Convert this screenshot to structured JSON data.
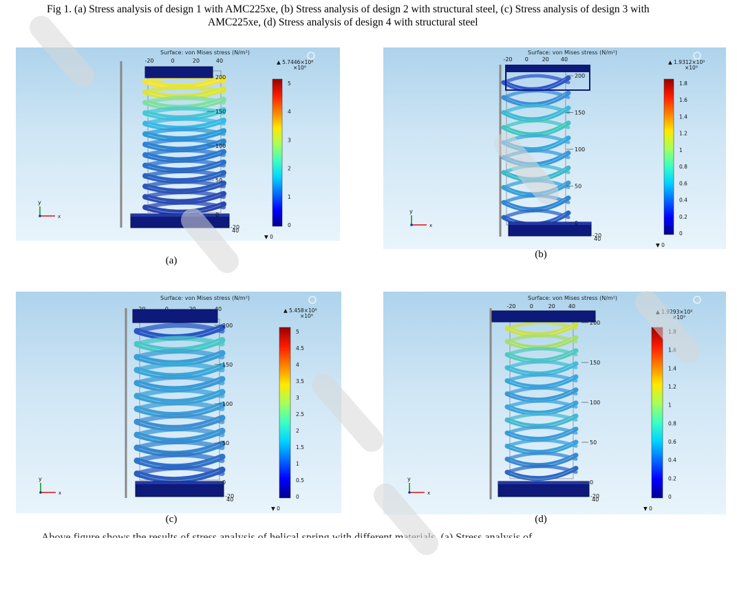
{
  "caption": {
    "line1": "Fig 1. (a) Stress analysis of design 1 with AMC225xe, (b) Stress analysis of design 2 with structural steel, (c) Stress analysis of design 3 with",
    "line2": "AMC225xe, (d) Stress analysis of design 4 with structural steel"
  },
  "body_text_partial": "Above figure shows the results of stress analysis of helical spring with different materials. (a) Stress analysis of",
  "panels": [
    {
      "id": "a",
      "label": "(a)",
      "title": "Surface: von Mises stress (N/m²)",
      "max_value": "▲ 5.7446×10⁸",
      "multiplier": "×10⁸",
      "min_value": "▼ 0",
      "colorbar_ticks": [
        "5",
        "4",
        "3",
        "2",
        "1",
        "0"
      ],
      "top_ticks": [
        "-20",
        "0",
        "20",
        "40"
      ],
      "height_ticks": [
        "200",
        "150",
        "100",
        "50",
        "0"
      ],
      "depth_ticks": [
        "-20",
        "40"
      ],
      "axis_y": "y",
      "axis_x": "x",
      "coils": 13,
      "stress_colors": [
        "#f2e431",
        "#d9e63a",
        "#7fe0a0",
        "#46c8d6",
        "#39b9e4",
        "#2f9ad8",
        "#2d84d4",
        "#2b78cf",
        "#2b70c9",
        "#2a63c2",
        "#2a58bb",
        "#2a4eb4",
        "#2a46ae"
      ]
    },
    {
      "id": "b",
      "label": "(b)",
      "title": "Surface: von Mises stress (N/m²)",
      "max_value": "▲ 1.9312×10⁹",
      "multiplier": "×10⁹",
      "min_value": "▼ 0",
      "colorbar_ticks": [
        "1.8",
        "1.6",
        "1.4",
        "1.2",
        "1",
        "0.8",
        "0.6",
        "0.4",
        "0.2",
        "0"
      ],
      "top_ticks": [
        "-20",
        "0",
        "20",
        "40"
      ],
      "height_ticks": [
        "200",
        "150",
        "100",
        "50",
        "0"
      ],
      "depth_ticks": [
        "-20",
        "40"
      ],
      "axis_y": "y",
      "axis_x": "x",
      "coils": 10,
      "stress_colors": [
        "#2f55c9",
        "#3b8fd8",
        "#3dbad4",
        "#43c6c0",
        "#3aa8dc",
        "#3a9ad8",
        "#3fb8cc",
        "#3aa0d8",
        "#2f88d2",
        "#2c63c4"
      ]
    },
    {
      "id": "c",
      "label": "(c)",
      "title": "Surface: von Mises stress (N/m²)",
      "max_value": "▲ 5.458×10⁸",
      "multiplier": "×10⁸",
      "min_value": "▼ 0",
      "colorbar_ticks": [
        "5",
        "4.5",
        "4",
        "3.5",
        "3",
        "2.5",
        "2",
        "1.5",
        "1",
        "0.5",
        "0"
      ],
      "top_ticks": [
        "-20",
        "0",
        "20",
        "40"
      ],
      "height_ticks": [
        "200",
        "150",
        "100",
        "50",
        "0"
      ],
      "depth_ticks": [
        "-20",
        "40"
      ],
      "axis_y": "y",
      "axis_x": "x",
      "coils": 12,
      "stress_colors": [
        "#2a57c4",
        "#4ac7c8",
        "#3b9ed8",
        "#3aa8d8",
        "#3b9ad6",
        "#3aa2d8",
        "#3f9ed6",
        "#3c8fd2",
        "#3a96d4",
        "#3486d0",
        "#2f74c8",
        "#2c5ec0"
      ]
    },
    {
      "id": "d",
      "label": "(d)",
      "title": "Surface: von Mises stress (N/m²)",
      "max_value": "▲ 1.9293×10⁹",
      "multiplier": "×10⁹",
      "min_value": "▼ 0",
      "colorbar_ticks": [
        "1.8",
        "1.6",
        "1.4",
        "1.2",
        "1",
        "0.8",
        "0.6",
        "0.4",
        "0.2",
        "0"
      ],
      "top_ticks": [
        "-20",
        "0",
        "20",
        "40"
      ],
      "height_ticks": [
        "200",
        "150",
        "100",
        "50",
        "0"
      ],
      "depth_ticks": [
        "-20",
        "40"
      ],
      "axis_y": "y",
      "axis_x": "x",
      "coils": 12,
      "stress_colors": [
        "#c8e04a",
        "#a6dd70",
        "#52c9c0",
        "#43bbd8",
        "#3aa6dc",
        "#3a9ad8",
        "#3aa4dc",
        "#45b8d0",
        "#3a9cd8",
        "#3aa2da",
        "#3688d2",
        "#2d68c4"
      ]
    }
  ],
  "colormap": [
    "#00008f",
    "#0000ff",
    "#006bff",
    "#00d4ff",
    "#3dffc3",
    "#a6ff59",
    "#ffe800",
    "#ff8000",
    "#ff1a00",
    "#990000"
  ]
}
